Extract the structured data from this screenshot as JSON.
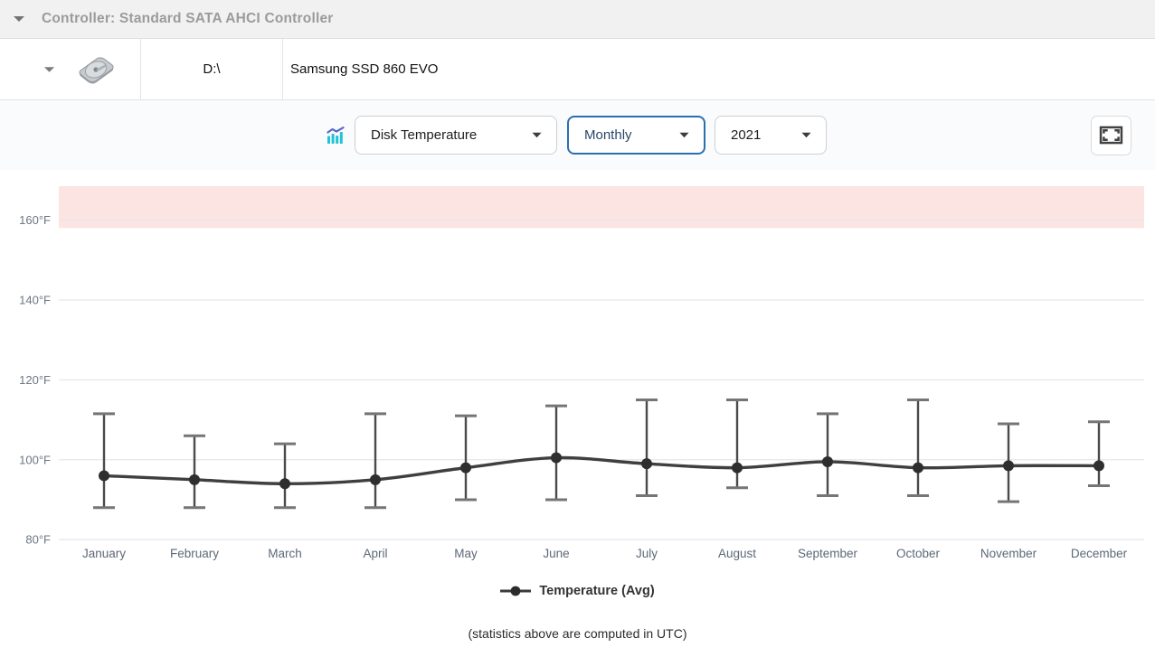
{
  "header": {
    "title": "Controller: Standard SATA AHCI Controller"
  },
  "disk_row": {
    "drive_letter": "D:\\",
    "model": "Samsung SSD 860 EVO"
  },
  "controls": {
    "metric_dropdown": "Disk Temperature",
    "period_dropdown": "Monthly",
    "year_dropdown": "2021"
  },
  "chart_data": {
    "type": "line",
    "title": "",
    "categories": [
      "January",
      "February",
      "March",
      "April",
      "May",
      "June",
      "July",
      "August",
      "September",
      "October",
      "November",
      "December"
    ],
    "series": [
      {
        "name": "Temperature (Avg)",
        "role": "avg",
        "values": [
          96,
          95,
          94,
          95,
          98,
          100.5,
          99,
          98,
          99.5,
          98,
          98.5,
          98.5
        ]
      },
      {
        "name": "range high (whisker top)",
        "role": "high",
        "values": [
          111.5,
          106,
          104,
          111.5,
          111,
          113.5,
          115,
          115,
          111.5,
          115,
          109,
          109.5
        ]
      },
      {
        "name": "range low (whisker bottom)",
        "role": "low",
        "values": [
          88,
          88,
          88,
          88,
          90,
          90,
          91,
          93,
          91,
          91,
          89.5,
          93.5
        ]
      }
    ],
    "legend": "Temperature (Avg)",
    "legend_position": "bottom",
    "unit": "°F",
    "ylim": [
      78,
      168.5
    ],
    "yticks": [
      80,
      100,
      120,
      140,
      160
    ],
    "grid": true,
    "warning_band": {
      "from": 158,
      "to": 168.5,
      "color": "#fce4e2"
    },
    "colors": {
      "series_line": "#3f3f3f",
      "marker": "#2e2e2e",
      "whisker": "#4a4a4a",
      "whisker_cap": "#757575",
      "grid": "#e7e7e7",
      "baseline": "#dde5ef",
      "focus_border": "#2a6fad"
    }
  },
  "footer": {
    "note": "(statistics above are computed in UTC)"
  }
}
